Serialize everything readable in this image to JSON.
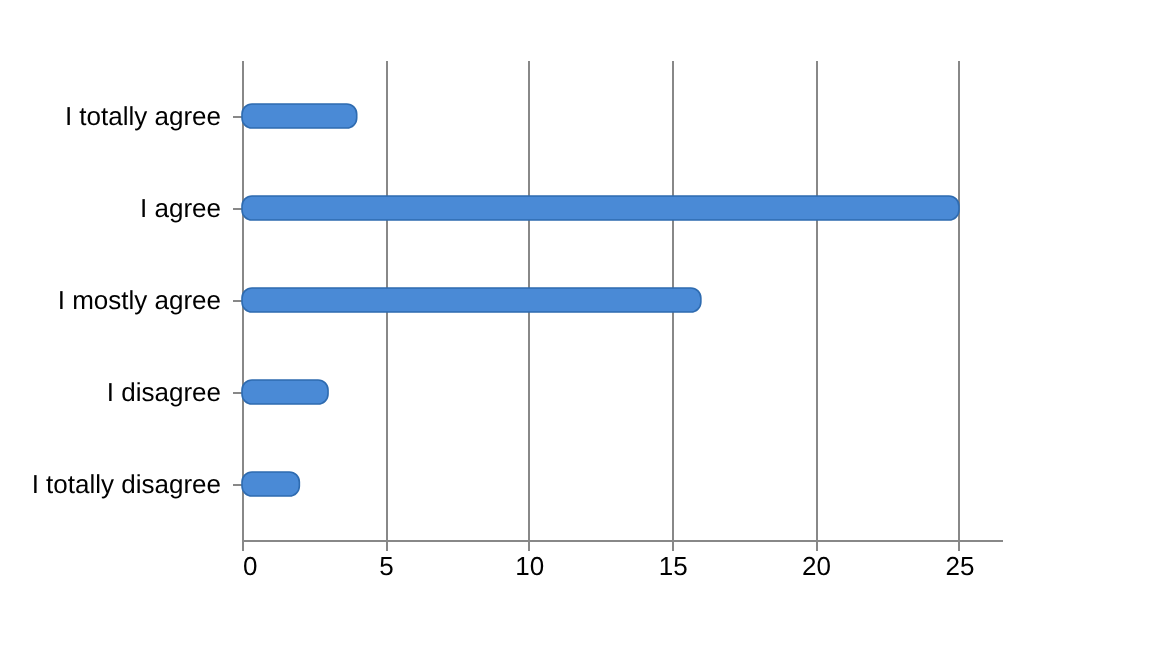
{
  "chart_data": {
    "type": "bar",
    "orientation": "horizontal",
    "categories": [
      "I totally agree",
      "I agree",
      "I mostly agree",
      "I disagree",
      "I totally disagree"
    ],
    "values": [
      4,
      25,
      16,
      3,
      2
    ],
    "color": "#4a8ad6",
    "xlim": [
      0,
      26.5
    ],
    "xticks": [
      0,
      5,
      10,
      15,
      20,
      25
    ],
    "grid": "x"
  }
}
